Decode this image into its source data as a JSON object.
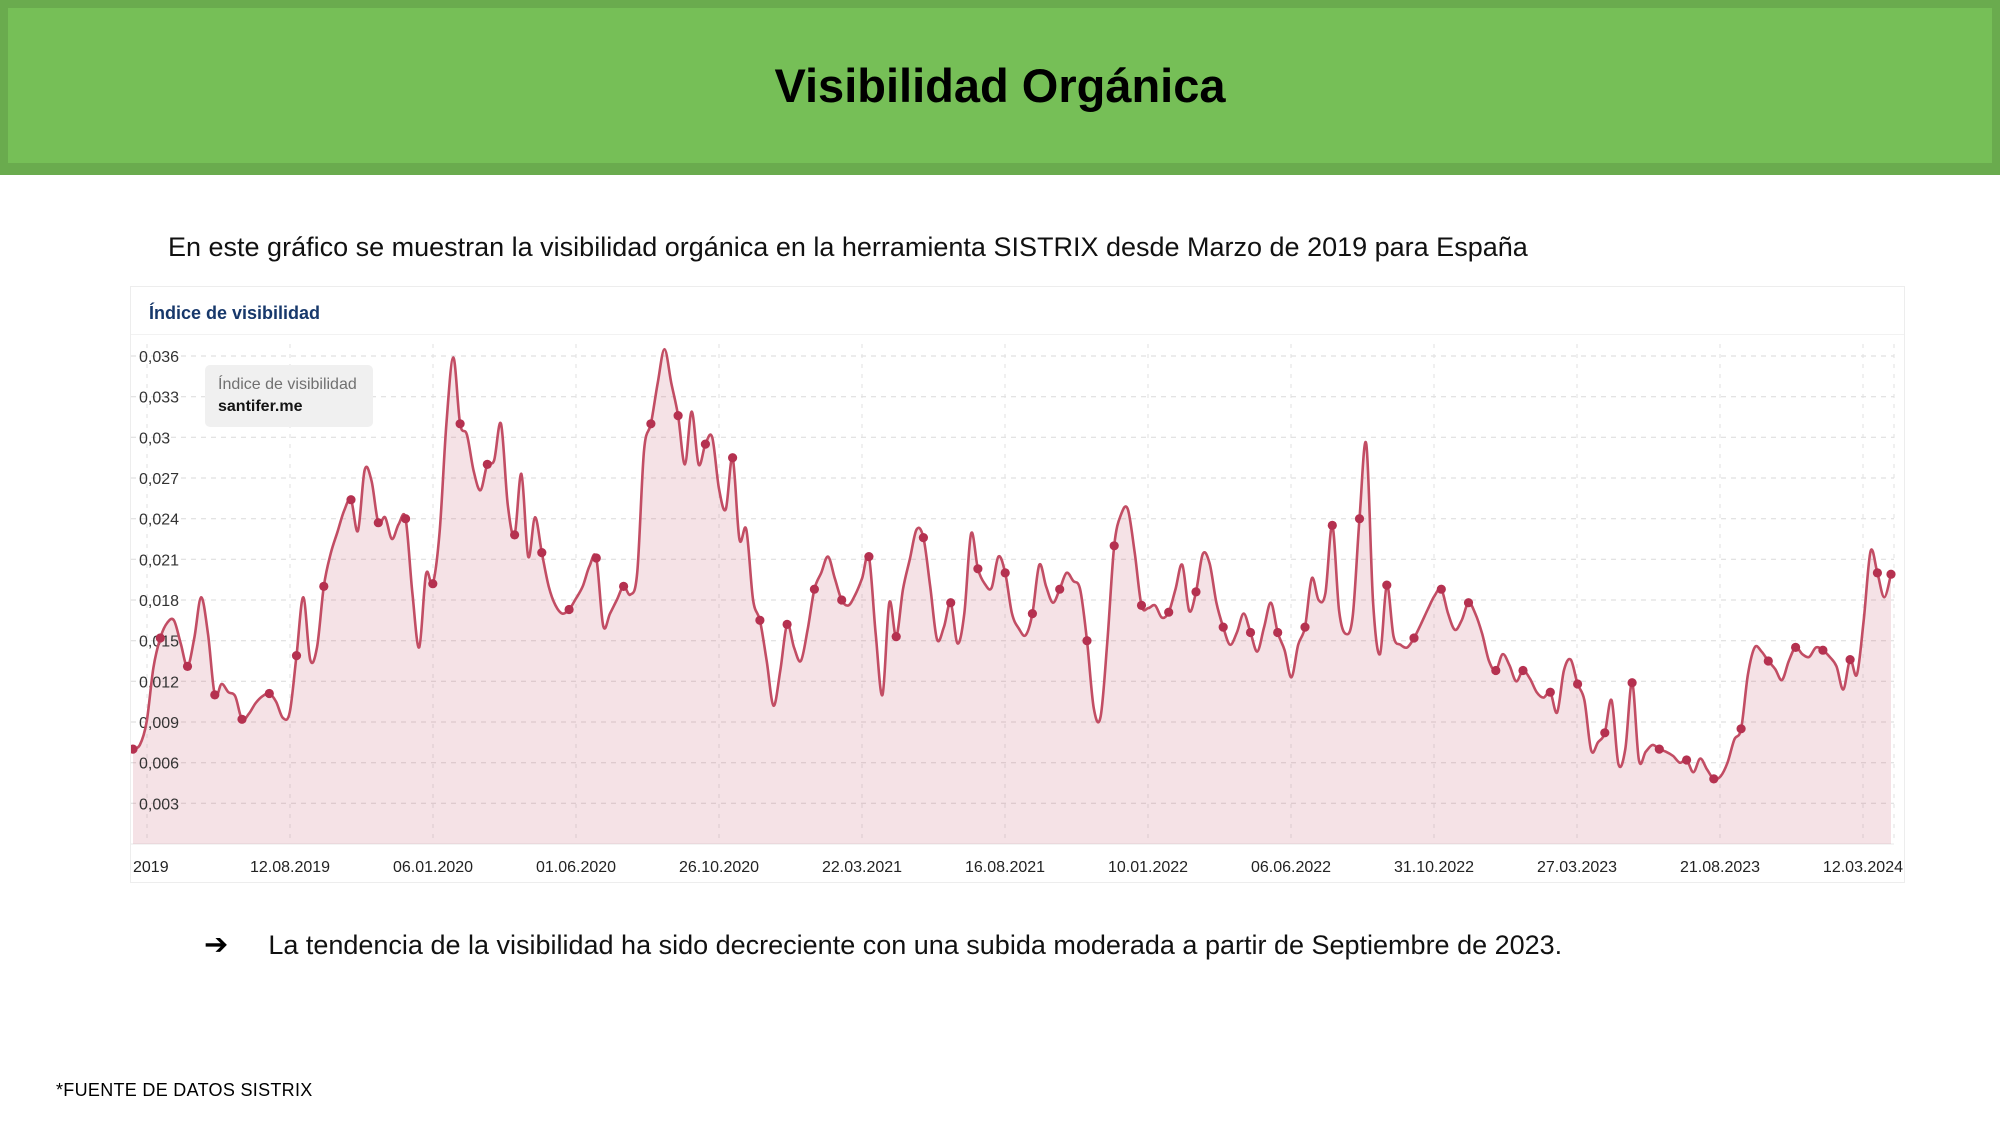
{
  "header": {
    "title": "Visibilidad Orgánica",
    "bg_color": "#76BF57",
    "border_color": "#6AAB4E"
  },
  "subtitle": "En este gráfico se muestran la visibilidad orgánica en la herramienta SISTRIX desde Marzo de 2019 para España",
  "chart_panel": {
    "title": "Índice de visibilidad",
    "legend": {
      "line1": "Índice de visibilidad",
      "line2": "santifer.me"
    }
  },
  "chart_data": {
    "type": "area",
    "title": "Índice de visibilidad",
    "series_name": "santifer.me",
    "legend_position": "top-left",
    "grid": true,
    "ylim": [
      0,
      0.0375
    ],
    "line_color": "#C24D64",
    "dot_color": "#B53150",
    "fill_color": "rgba(194,77,100,0.16)",
    "y_tick_values": [
      0.036,
      0.033,
      0.03,
      0.027,
      0.024,
      0.021,
      0.018,
      0.015,
      0.012,
      0.009,
      0.006,
      0.003
    ],
    "y_tick_labels": [
      "0,036",
      "0,033",
      "0,03",
      "0,027",
      "0,024",
      "0,021",
      "0,018",
      "0,015",
      "0,012",
      "0,009",
      "0,006",
      "0,003"
    ],
    "x_tick_labels": [
      "2019",
      "12.08.2019",
      "06.01.2020",
      "01.06.2020",
      "26.10.2020",
      "22.03.2021",
      "16.08.2021",
      "10.01.2022",
      "06.06.2022",
      "31.10.2022",
      "27.03.2023",
      "21.08.2023",
      "12.03.2024"
    ],
    "values": [
      0.007,
      0.0073,
      0.009,
      0.013,
      0.0152,
      0.0163,
      0.0165,
      0.0148,
      0.0131,
      0.0152,
      0.0182,
      0.0155,
      0.011,
      0.0118,
      0.0112,
      0.0109,
      0.0092,
      0.0096,
      0.0104,
      0.0109,
      0.0111,
      0.0105,
      0.0093,
      0.0097,
      0.0139,
      0.0182,
      0.0136,
      0.0145,
      0.019,
      0.0214,
      0.023,
      0.0246,
      0.0254,
      0.0231,
      0.0276,
      0.0268,
      0.0237,
      0.0241,
      0.0225,
      0.0236,
      0.024,
      0.0185,
      0.0145,
      0.0199,
      0.0192,
      0.023,
      0.031,
      0.0359,
      0.031,
      0.0302,
      0.0275,
      0.0261,
      0.028,
      0.0283,
      0.031,
      0.025,
      0.0228,
      0.0273,
      0.0212,
      0.0241,
      0.0215,
      0.019,
      0.0176,
      0.017,
      0.0173,
      0.0181,
      0.019,
      0.0205,
      0.0211,
      0.0161,
      0.017,
      0.018,
      0.019,
      0.0184,
      0.02,
      0.029,
      0.031,
      0.034,
      0.0365,
      0.034,
      0.0316,
      0.028,
      0.0319,
      0.028,
      0.0295,
      0.03,
      0.0262,
      0.0247,
      0.0285,
      0.0225,
      0.0232,
      0.018,
      0.0165,
      0.0135,
      0.0102,
      0.0128,
      0.0162,
      0.0145,
      0.0135,
      0.0158,
      0.0188,
      0.02,
      0.0212,
      0.0196,
      0.018,
      0.0176,
      0.0184,
      0.0196,
      0.0212,
      0.0155,
      0.011,
      0.0178,
      0.0153,
      0.0188,
      0.021,
      0.0232,
      0.0226,
      0.019,
      0.0151,
      0.016,
      0.0178,
      0.0148,
      0.017,
      0.0229,
      0.0203,
      0.0192,
      0.0189,
      0.0212,
      0.02,
      0.017,
      0.0159,
      0.0154,
      0.017,
      0.0206,
      0.019,
      0.0178,
      0.0188,
      0.02,
      0.0194,
      0.0188,
      0.015,
      0.01,
      0.0094,
      0.015,
      0.022,
      0.0243,
      0.0247,
      0.0215,
      0.0176,
      0.0174,
      0.0176,
      0.0167,
      0.0171,
      0.0188,
      0.0206,
      0.0172,
      0.0186,
      0.0214,
      0.0207,
      0.0178,
      0.016,
      0.0147,
      0.0156,
      0.017,
      0.0156,
      0.0142,
      0.016,
      0.0178,
      0.0156,
      0.0143,
      0.0123,
      0.0147,
      0.016,
      0.0196,
      0.018,
      0.0185,
      0.0235,
      0.0172,
      0.0155,
      0.0168,
      0.024,
      0.0295,
      0.0178,
      0.014,
      0.0191,
      0.0153,
      0.0147,
      0.0145,
      0.0152,
      0.0162,
      0.0173,
      0.0183,
      0.0188,
      0.017,
      0.0158,
      0.0165,
      0.0178,
      0.017,
      0.0155,
      0.0135,
      0.0128,
      0.014,
      0.0132,
      0.012,
      0.0128,
      0.0122,
      0.0112,
      0.0108,
      0.0112,
      0.0097,
      0.0128,
      0.0136,
      0.0118,
      0.0106,
      0.0069,
      0.0075,
      0.0082,
      0.0106,
      0.0059,
      0.007,
      0.0119,
      0.0062,
      0.0068,
      0.0073,
      0.007,
      0.0068,
      0.0065,
      0.006,
      0.0062,
      0.0053,
      0.0063,
      0.0055,
      0.0048,
      0.005,
      0.006,
      0.0077,
      0.0085,
      0.0125,
      0.0145,
      0.0142,
      0.0135,
      0.0129,
      0.0121,
      0.0135,
      0.0145,
      0.014,
      0.0138,
      0.0145,
      0.0143,
      0.0138,
      0.0131,
      0.0114,
      0.0136,
      0.0125,
      0.0165,
      0.0216,
      0.02,
      0.0182,
      0.0199
    ]
  },
  "bullet": {
    "icon": "➔",
    "text": "La tendencia de la visibilidad ha sido decreciente con una subida moderada a partir de Septiembre de 2023."
  },
  "footer": "*FUENTE DE DATOS SISTRIX"
}
